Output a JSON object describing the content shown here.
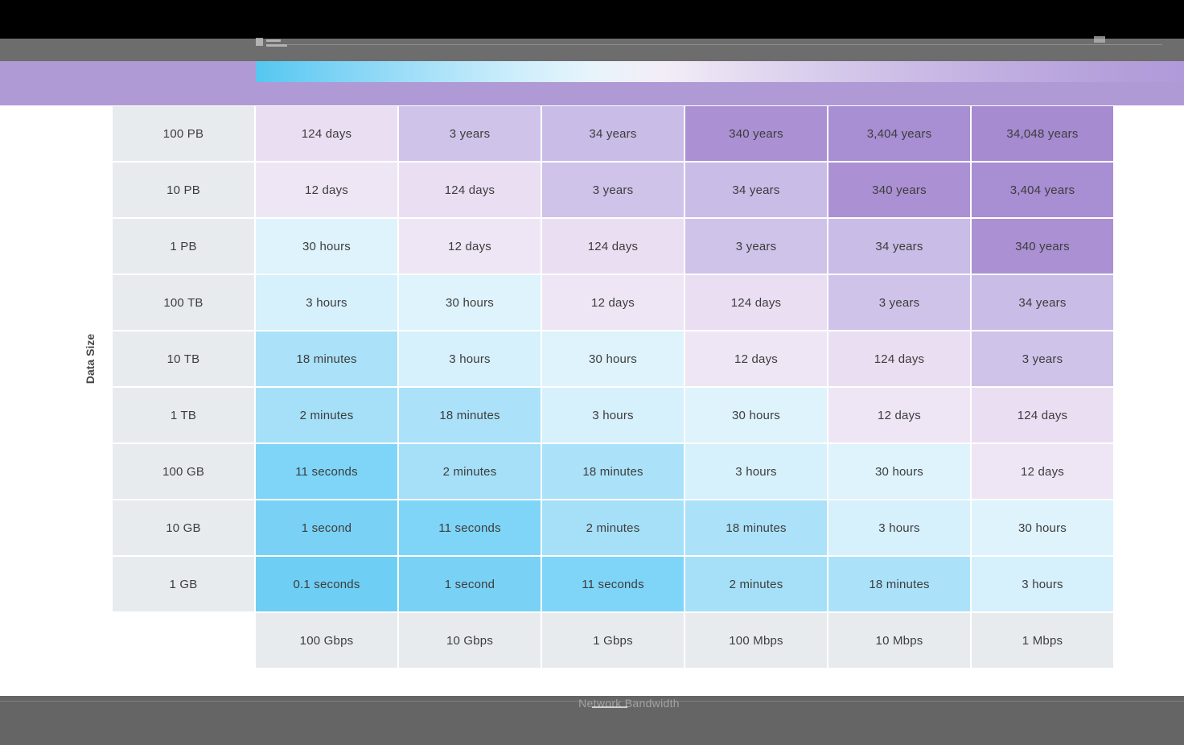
{
  "header": {
    "top_bar_color": "#000000",
    "toolbar_color": "#6d6d6d",
    "band_color": "#b09ad5",
    "gradient_start": "#55c7f0",
    "gradient_end": "#b19ad9"
  },
  "chart_data": {
    "type": "heatmap",
    "title": "",
    "xlabel": "Network Bandwidth",
    "ylabel": "Data Size",
    "x_categories": [
      "100 Gbps",
      "10 Gbps",
      "1 Gbps",
      "100 Mbps",
      "10 Mbps",
      "1 Mbps"
    ],
    "y_categories": [
      "100 PB",
      "10 PB",
      "1 PB",
      "100 TB",
      "10 TB",
      "1 TB",
      "100 GB",
      "10 GB",
      "1 GB"
    ],
    "rows": [
      [
        "124 days",
        "3 years",
        "34 years",
        "340 years",
        "3,404 years",
        "34,048 years"
      ],
      [
        "12 days",
        "124 days",
        "3 years",
        "34 years",
        "340 years",
        "3,404 years"
      ],
      [
        "30 hours",
        "12 days",
        "124 days",
        "3 years",
        "34 years",
        "340 years"
      ],
      [
        "3 hours",
        "30 hours",
        "12 days",
        "124 days",
        "3 years",
        "34 years"
      ],
      [
        "18 minutes",
        "3 hours",
        "30 hours",
        "12 days",
        "124 days",
        "3 years"
      ],
      [
        "2 minutes",
        "18 minutes",
        "3 hours",
        "30 hours",
        "12 days",
        "124 days"
      ],
      [
        "11 seconds",
        "2 minutes",
        "18 minutes",
        "3 hours",
        "30 hours",
        "12 days"
      ],
      [
        "1 second",
        "11 seconds",
        "2 minutes",
        "18 minutes",
        "3 hours",
        "30 hours"
      ],
      [
        "0.1 seconds",
        "1 second",
        "11 seconds",
        "2 minutes",
        "18 minutes",
        "3 hours"
      ]
    ],
    "cell_colors": {
      "0.1 seconds": "#6fcef4",
      "1 second": "#79d2f5",
      "11 seconds": "#7ed5f7",
      "2 minutes": "#a5e0f8",
      "18 minutes": "#abe2f9",
      "3 hours": "#d6f0fc",
      "30 hours": "#def3fc",
      "12 days": "#eee6f5",
      "124 days": "#eadff2",
      "3 years": "#cfc3e9",
      "34 years": "#c9bce6",
      "340 years": "#ab91d3",
      "3,404 years": "#a88ed2",
      "34,048 years": "#a68bd1"
    },
    "label_bg": "#e8ebee",
    "grid": false,
    "legend_position": "none"
  },
  "footer": {
    "caption": "Network Bandwidth",
    "background": "#656565"
  }
}
